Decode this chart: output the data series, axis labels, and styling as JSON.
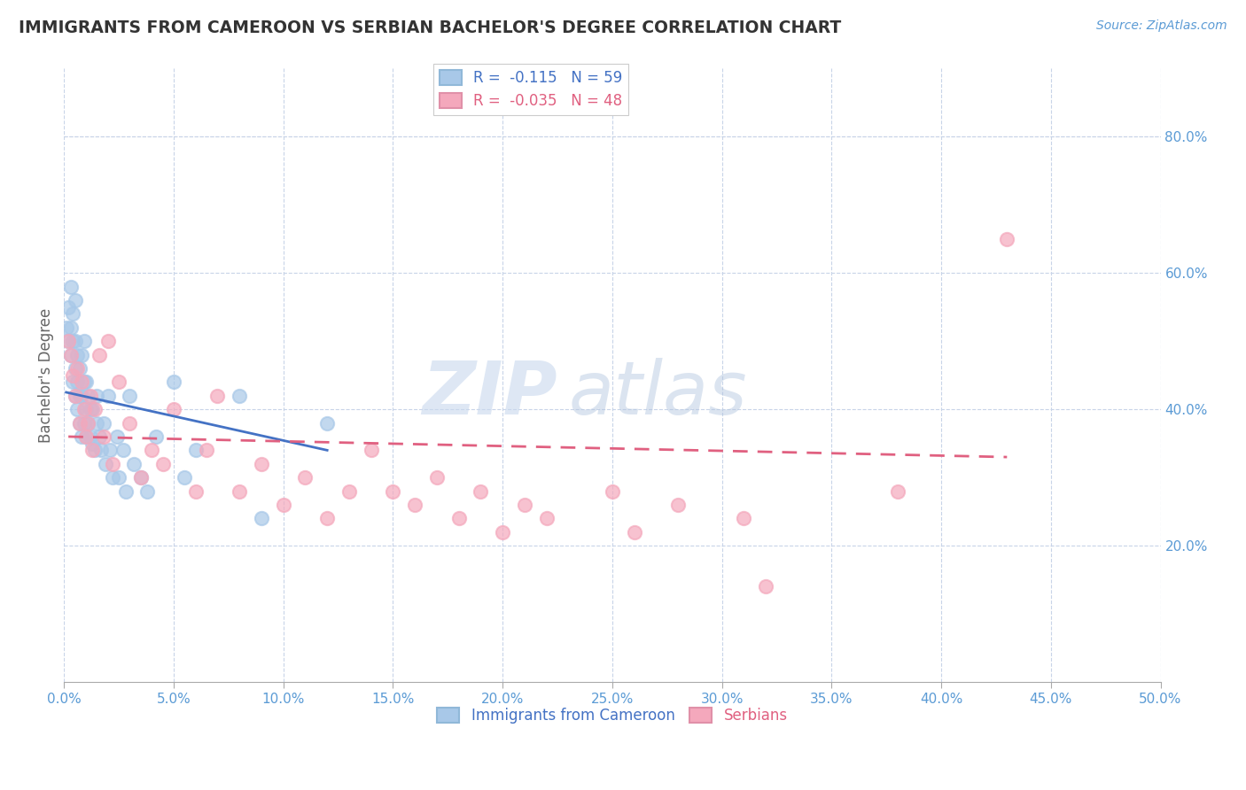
{
  "title": "IMMIGRANTS FROM CAMEROON VS SERBIAN BACHELOR'S DEGREE CORRELATION CHART",
  "source": "Source: ZipAtlas.com",
  "xlabel": "",
  "ylabel": "Bachelor's Degree",
  "legend_label1": "Immigrants from Cameroon",
  "legend_label2": "Serbians",
  "r1": -0.115,
  "n1": 59,
  "r2": -0.035,
  "n2": 48,
  "color1": "#a8c8e8",
  "color2": "#f4a8bc",
  "line1_color": "#4472c4",
  "line2_color": "#e06080",
  "line1_style": "-",
  "line2_style": "--",
  "xlim": [
    0.0,
    0.5
  ],
  "ylim": [
    0.0,
    0.9
  ],
  "xticks": [
    0.0,
    0.05,
    0.1,
    0.15,
    0.2,
    0.25,
    0.3,
    0.35,
    0.4,
    0.45,
    0.5
  ],
  "yticks_right": [
    0.2,
    0.4,
    0.6,
    0.8
  ],
  "background_color": "#ffffff",
  "grid_color": "#c8d4e8",
  "watermark_zip": "ZIP",
  "watermark_atlas": "atlas",
  "blue_scatter_x": [
    0.001,
    0.002,
    0.002,
    0.003,
    0.003,
    0.003,
    0.004,
    0.004,
    0.004,
    0.005,
    0.005,
    0.005,
    0.005,
    0.006,
    0.006,
    0.006,
    0.007,
    0.007,
    0.007,
    0.008,
    0.008,
    0.008,
    0.009,
    0.009,
    0.009,
    0.01,
    0.01,
    0.01,
    0.011,
    0.011,
    0.012,
    0.012,
    0.013,
    0.013,
    0.014,
    0.015,
    0.015,
    0.016,
    0.017,
    0.018,
    0.019,
    0.02,
    0.021,
    0.022,
    0.024,
    0.025,
    0.027,
    0.028,
    0.03,
    0.032,
    0.035,
    0.038,
    0.042,
    0.05,
    0.055,
    0.06,
    0.08,
    0.09,
    0.12
  ],
  "blue_scatter_y": [
    0.52,
    0.5,
    0.55,
    0.48,
    0.52,
    0.58,
    0.44,
    0.5,
    0.54,
    0.42,
    0.46,
    0.5,
    0.56,
    0.4,
    0.44,
    0.48,
    0.38,
    0.42,
    0.46,
    0.36,
    0.42,
    0.48,
    0.38,
    0.44,
    0.5,
    0.36,
    0.4,
    0.44,
    0.38,
    0.42,
    0.36,
    0.4,
    0.35,
    0.4,
    0.34,
    0.38,
    0.42,
    0.36,
    0.34,
    0.38,
    0.32,
    0.42,
    0.34,
    0.3,
    0.36,
    0.3,
    0.34,
    0.28,
    0.42,
    0.32,
    0.3,
    0.28,
    0.36,
    0.44,
    0.3,
    0.34,
    0.42,
    0.24,
    0.38
  ],
  "pink_scatter_x": [
    0.002,
    0.003,
    0.004,
    0.005,
    0.006,
    0.007,
    0.008,
    0.009,
    0.01,
    0.011,
    0.012,
    0.013,
    0.014,
    0.016,
    0.018,
    0.02,
    0.022,
    0.025,
    0.03,
    0.035,
    0.04,
    0.045,
    0.05,
    0.06,
    0.065,
    0.07,
    0.08,
    0.09,
    0.1,
    0.11,
    0.12,
    0.13,
    0.14,
    0.15,
    0.16,
    0.17,
    0.18,
    0.19,
    0.2,
    0.21,
    0.22,
    0.25,
    0.26,
    0.28,
    0.31,
    0.32,
    0.38,
    0.43
  ],
  "pink_scatter_y": [
    0.5,
    0.48,
    0.45,
    0.42,
    0.46,
    0.38,
    0.44,
    0.4,
    0.36,
    0.38,
    0.42,
    0.34,
    0.4,
    0.48,
    0.36,
    0.5,
    0.32,
    0.44,
    0.38,
    0.3,
    0.34,
    0.32,
    0.4,
    0.28,
    0.34,
    0.42,
    0.28,
    0.32,
    0.26,
    0.3,
    0.24,
    0.28,
    0.34,
    0.28,
    0.26,
    0.3,
    0.24,
    0.28,
    0.22,
    0.26,
    0.24,
    0.28,
    0.22,
    0.26,
    0.24,
    0.14,
    0.28,
    0.65
  ],
  "blue_trend_x": [
    0.001,
    0.12
  ],
  "blue_trend_y": [
    0.425,
    0.34
  ],
  "pink_trend_x": [
    0.002,
    0.43
  ],
  "pink_trend_y": [
    0.36,
    0.33
  ]
}
